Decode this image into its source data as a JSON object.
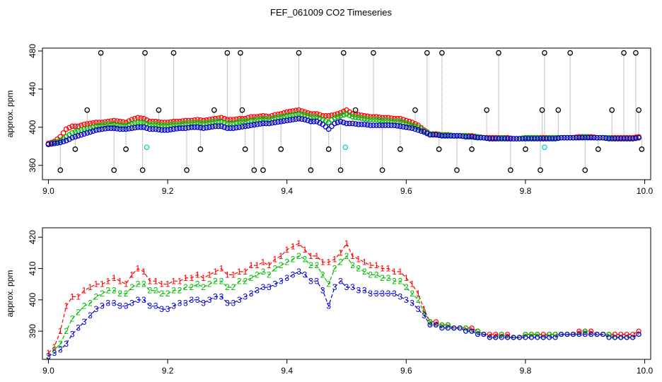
{
  "colors": {
    "s1": "#ff0000",
    "s2": "#00bb00",
    "s3": "#0000cc",
    "flag": "#000000",
    "cyan": "#00cccc",
    "grey": "#888888"
  },
  "chart_data": [
    {
      "type": "scatter",
      "title": "FEF_061009  CO2 Timeseries",
      "xlabel": "",
      "ylabel": "approx. ppm",
      "xlim": [
        8.99,
        10.01
      ],
      "ylim": [
        345,
        483
      ],
      "xticks": [
        "9.0",
        "9.2",
        "9.4",
        "9.6",
        "9.8",
        "10.0"
      ],
      "xtick_values": [
        9.0,
        9.2,
        9.4,
        9.6,
        9.8,
        10.0
      ],
      "yticks": [
        "360",
        "400",
        "440",
        "480"
      ],
      "ytick_values": [
        360,
        400,
        440,
        480
      ],
      "flags_x": [
        9.02,
        9.045,
        9.065,
        9.088,
        9.11,
        9.13,
        9.158,
        9.162,
        9.185,
        9.21,
        9.232,
        9.255,
        9.278,
        9.3,
        9.322,
        9.325,
        9.33,
        9.345,
        9.36,
        9.39,
        9.42,
        9.44,
        9.47,
        9.49,
        9.495,
        9.515,
        9.545,
        9.56,
        9.59,
        9.615,
        9.635,
        9.655,
        9.66,
        9.685,
        9.71,
        9.735,
        9.755,
        9.775,
        9.8,
        9.825,
        9.828,
        9.832,
        9.855,
        9.875,
        9.9,
        9.922,
        9.945,
        9.965,
        9.985,
        9.99,
        9.995
      ],
      "flags_y": [
        355,
        377,
        418,
        478,
        355,
        377,
        355,
        478,
        418,
        478,
        355,
        377,
        418,
        478,
        478,
        418,
        377,
        355,
        355,
        377,
        478,
        355,
        377,
        355,
        478,
        418,
        478,
        355,
        377,
        418,
        478,
        377,
        478,
        355,
        377,
        418,
        478,
        355,
        377,
        355,
        418,
        478,
        418,
        478,
        355,
        377,
        418,
        478,
        478,
        418,
        377
      ],
      "cyan_x": [
        9.165,
        9.498,
        9.832
      ],
      "cyan_y": [
        379,
        379,
        379
      ],
      "series": [
        {
          "label": "1",
          "x": [
            9.0,
            9.01,
            9.02,
            9.03,
            9.04,
            9.05,
            9.06,
            9.07,
            9.08,
            9.09,
            9.1,
            9.11,
            9.12,
            9.13,
            9.14,
            9.15,
            9.16,
            9.17,
            9.18,
            9.19,
            9.2,
            9.21,
            9.22,
            9.23,
            9.24,
            9.25,
            9.26,
            9.27,
            9.28,
            9.29,
            9.3,
            9.31,
            9.32,
            9.33,
            9.34,
            9.35,
            9.36,
            9.37,
            9.38,
            9.39,
            9.4,
            9.41,
            9.42,
            9.43,
            9.44,
            9.45,
            9.46,
            9.47,
            9.48,
            9.49,
            9.5,
            9.51,
            9.52,
            9.53,
            9.54,
            9.55,
            9.56,
            9.57,
            9.58,
            9.59,
            9.6,
            9.61,
            9.62,
            9.63,
            9.64,
            9.65,
            9.66,
            9.67,
            9.68,
            9.69,
            9.7,
            9.71,
            9.72,
            9.73,
            9.74,
            9.75,
            9.76,
            9.77,
            9.78,
            9.79,
            9.8,
            9.81,
            9.82,
            9.83,
            9.84,
            9.85,
            9.86,
            9.87,
            9.88,
            9.89,
            9.9,
            9.91,
            9.92,
            9.93,
            9.94,
            9.95,
            9.96,
            9.97,
            9.98,
            9.99
          ],
          "y": [
            383,
            385,
            390,
            398,
            401,
            401,
            403,
            404,
            405,
            405,
            406,
            407,
            406,
            405,
            408,
            410,
            409,
            406,
            406,
            405,
            405,
            406,
            406,
            407,
            407,
            408,
            407,
            408,
            409,
            410,
            408,
            408,
            409,
            409,
            411,
            411,
            412,
            411,
            413,
            414,
            416,
            417,
            418,
            416,
            414,
            414,
            412,
            412,
            413,
            415,
            418,
            414,
            413,
            412,
            411,
            411,
            410,
            410,
            409,
            409,
            407,
            405,
            402,
            397,
            393,
            393,
            392,
            392,
            391,
            391,
            391,
            391,
            390,
            389,
            389,
            389,
            389,
            389,
            388,
            388,
            389,
            389,
            389,
            389,
            389,
            389,
            389,
            389,
            389,
            390,
            390,
            390,
            389,
            389,
            389,
            389,
            389,
            389,
            389,
            390
          ]
        },
        {
          "label": "2",
          "x": [
            9.0,
            9.01,
            9.02,
            9.03,
            9.04,
            9.05,
            9.06,
            9.07,
            9.08,
            9.09,
            9.1,
            9.11,
            9.12,
            9.13,
            9.14,
            9.15,
            9.16,
            9.17,
            9.18,
            9.19,
            9.2,
            9.21,
            9.22,
            9.23,
            9.24,
            9.25,
            9.26,
            9.27,
            9.28,
            9.29,
            9.3,
            9.31,
            9.32,
            9.33,
            9.34,
            9.35,
            9.36,
            9.37,
            9.38,
            9.39,
            9.4,
            9.41,
            9.42,
            9.43,
            9.44,
            9.45,
            9.46,
            9.47,
            9.48,
            9.49,
            9.5,
            9.51,
            9.52,
            9.53,
            9.54,
            9.55,
            9.56,
            9.57,
            9.58,
            9.59,
            9.6,
            9.61,
            9.62,
            9.63,
            9.64,
            9.65,
            9.66,
            9.67,
            9.68,
            9.69,
            9.7,
            9.71,
            9.72,
            9.73,
            9.74,
            9.75,
            9.76,
            9.77,
            9.78,
            9.79,
            9.8,
            9.81,
            9.82,
            9.83,
            9.84,
            9.85,
            9.86,
            9.87,
            9.88,
            9.89,
            9.9,
            9.91,
            9.92,
            9.93,
            9.94,
            9.95,
            9.96,
            9.97,
            9.98,
            9.99
          ],
          "y": [
            382,
            384,
            386,
            390,
            394,
            396,
            398,
            399,
            401,
            402,
            403,
            403,
            402,
            402,
            404,
            405,
            405,
            403,
            403,
            402,
            402,
            403,
            403,
            404,
            404,
            405,
            404,
            405,
            406,
            406,
            404,
            404,
            406,
            406,
            407,
            408,
            409,
            408,
            410,
            411,
            412,
            413,
            414,
            413,
            411,
            411,
            408,
            405,
            410,
            412,
            414,
            411,
            410,
            409,
            408,
            408,
            407,
            407,
            406,
            406,
            404,
            402,
            400,
            396,
            393,
            392,
            392,
            392,
            391,
            391,
            391,
            390,
            390,
            389,
            388,
            388,
            389,
            388,
            388,
            388,
            389,
            389,
            389,
            388,
            389,
            389,
            389,
            389,
            389,
            389,
            390,
            389,
            389,
            389,
            389,
            388,
            388,
            388,
            388,
            389
          ]
        },
        {
          "label": "3",
          "x": [
            9.0,
            9.01,
            9.02,
            9.03,
            9.04,
            9.05,
            9.06,
            9.07,
            9.08,
            9.09,
            9.1,
            9.11,
            9.12,
            9.13,
            9.14,
            9.15,
            9.16,
            9.17,
            9.18,
            9.19,
            9.2,
            9.21,
            9.22,
            9.23,
            9.24,
            9.25,
            9.26,
            9.27,
            9.28,
            9.29,
            9.3,
            9.31,
            9.32,
            9.33,
            9.34,
            9.35,
            9.36,
            9.37,
            9.38,
            9.39,
            9.4,
            9.41,
            9.42,
            9.43,
            9.44,
            9.45,
            9.46,
            9.47,
            9.48,
            9.49,
            9.5,
            9.51,
            9.52,
            9.53,
            9.54,
            9.55,
            9.56,
            9.57,
            9.58,
            9.59,
            9.6,
            9.61,
            9.62,
            9.63,
            9.64,
            9.65,
            9.66,
            9.67,
            9.68,
            9.69,
            9.7,
            9.71,
            9.72,
            9.73,
            9.74,
            9.75,
            9.76,
            9.77,
            9.78,
            9.79,
            9.8,
            9.81,
            9.82,
            9.83,
            9.84,
            9.85,
            9.86,
            9.87,
            9.88,
            9.89,
            9.9,
            9.91,
            9.92,
            9.93,
            9.94,
            9.95,
            9.96,
            9.97,
            9.98,
            9.99
          ],
          "y": [
            382,
            383,
            384,
            386,
            389,
            391,
            393,
            395,
            397,
            398,
            399,
            399,
            398,
            398,
            399,
            400,
            400,
            398,
            398,
            397,
            397,
            398,
            399,
            399,
            400,
            400,
            399,
            400,
            401,
            401,
            399,
            399,
            400,
            401,
            402,
            403,
            404,
            404,
            405,
            406,
            407,
            408,
            409,
            408,
            406,
            406,
            403,
            398,
            404,
            406,
            404,
            404,
            403,
            403,
            402,
            402,
            402,
            402,
            402,
            401,
            400,
            399,
            397,
            395,
            392,
            392,
            391,
            391,
            391,
            391,
            390,
            390,
            389,
            389,
            388,
            388,
            388,
            388,
            388,
            388,
            388,
            388,
            388,
            388,
            388,
            388,
            389,
            389,
            389,
            389,
            389,
            389,
            389,
            389,
            388,
            388,
            388,
            388,
            388,
            389
          ]
        }
      ]
    },
    {
      "type": "line",
      "title": "",
      "xlabel": "",
      "ylabel": "approx. ppm",
      "xlim": [
        8.99,
        10.01
      ],
      "ylim": [
        381,
        423
      ],
      "xticks": [
        "9.0",
        "9.2",
        "9.4",
        "9.6",
        "9.8",
        "10.0"
      ],
      "xtick_values": [
        9.0,
        9.2,
        9.4,
        9.6,
        9.8,
        10.0
      ],
      "yticks": [
        "390",
        "400",
        "410",
        "420"
      ],
      "ytick_values": [
        390,
        400,
        410,
        420
      ]
    }
  ]
}
